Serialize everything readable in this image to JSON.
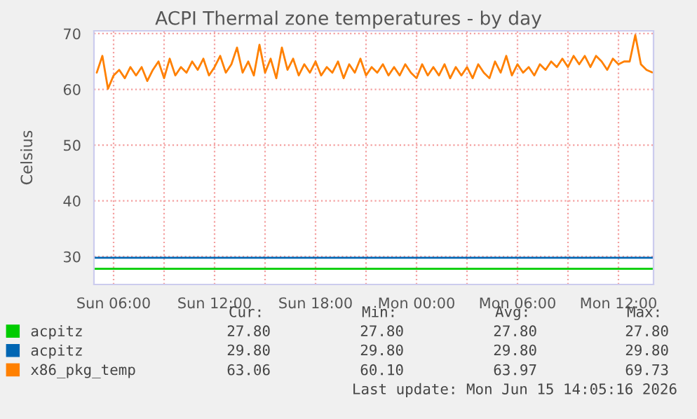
{
  "chart_data": {
    "type": "line",
    "title": "ACPI Thermal zone temperatures - by day",
    "ylabel": "Celsius",
    "xlim": [
      "2026-06-14T04:50",
      "2026-06-15T14:05"
    ],
    "xticks": [
      {
        "value": "2026-06-14T06:00",
        "label": "Sun 06:00"
      },
      {
        "value": "2026-06-14T09:00",
        "label": null
      },
      {
        "value": "2026-06-14T12:00",
        "label": "Sun 12:00"
      },
      {
        "value": "2026-06-14T15:00",
        "label": null
      },
      {
        "value": "2026-06-14T18:00",
        "label": "Sun 18:00"
      },
      {
        "value": "2026-06-14T21:00",
        "label": null
      },
      {
        "value": "2026-06-15T00:00",
        "label": "Mon 00:00"
      },
      {
        "value": "2026-06-15T03:00",
        "label": null
      },
      {
        "value": "2026-06-15T06:00",
        "label": "Mon 06:00"
      },
      {
        "value": "2026-06-15T09:00",
        "label": null
      },
      {
        "value": "2026-06-15T12:00",
        "label": "Mon 12:00"
      }
    ],
    "ylim": [
      25,
      70.5
    ],
    "yticks": [
      30,
      40,
      50,
      60,
      70
    ],
    "grid": true,
    "legend": "bottom",
    "marker": "none",
    "line_style": "solid",
    "x": [
      "2026-06-14T05:00",
      "2026-06-14T05:20",
      "2026-06-14T05:40",
      "2026-06-14T06:00",
      "2026-06-14T06:20",
      "2026-06-14T06:40",
      "2026-06-14T07:00",
      "2026-06-14T07:20",
      "2026-06-14T07:40",
      "2026-06-14T08:00",
      "2026-06-14T08:20",
      "2026-06-14T08:40",
      "2026-06-14T09:00",
      "2026-06-14T09:20",
      "2026-06-14T09:40",
      "2026-06-14T10:00",
      "2026-06-14T10:20",
      "2026-06-14T10:40",
      "2026-06-14T11:00",
      "2026-06-14T11:20",
      "2026-06-14T11:40",
      "2026-06-14T12:00",
      "2026-06-14T12:20",
      "2026-06-14T12:40",
      "2026-06-14T13:00",
      "2026-06-14T13:20",
      "2026-06-14T13:40",
      "2026-06-14T14:00",
      "2026-06-14T14:20",
      "2026-06-14T14:40",
      "2026-06-14T15:00",
      "2026-06-14T15:20",
      "2026-06-14T15:40",
      "2026-06-14T16:00",
      "2026-06-14T16:20",
      "2026-06-14T16:40",
      "2026-06-14T17:00",
      "2026-06-14T17:20",
      "2026-06-14T17:40",
      "2026-06-14T18:00",
      "2026-06-14T18:20",
      "2026-06-14T18:40",
      "2026-06-14T19:00",
      "2026-06-14T19:20",
      "2026-06-14T19:40",
      "2026-06-14T20:00",
      "2026-06-14T20:20",
      "2026-06-14T20:40",
      "2026-06-14T21:00",
      "2026-06-14T21:20",
      "2026-06-14T21:40",
      "2026-06-14T22:00",
      "2026-06-14T22:20",
      "2026-06-14T22:40",
      "2026-06-14T23:00",
      "2026-06-14T23:20",
      "2026-06-14T23:40",
      "2026-06-15T00:00",
      "2026-06-15T00:20",
      "2026-06-15T00:40",
      "2026-06-15T01:00",
      "2026-06-15T01:20",
      "2026-06-15T01:40",
      "2026-06-15T02:00",
      "2026-06-15T02:20",
      "2026-06-15T02:40",
      "2026-06-15T03:00",
      "2026-06-15T03:20",
      "2026-06-15T03:40",
      "2026-06-15T04:00",
      "2026-06-15T04:20",
      "2026-06-15T04:40",
      "2026-06-15T05:00",
      "2026-06-15T05:20",
      "2026-06-15T05:40",
      "2026-06-15T06:00",
      "2026-06-15T06:20",
      "2026-06-15T06:40",
      "2026-06-15T07:00",
      "2026-06-15T07:20",
      "2026-06-15T07:40",
      "2026-06-15T08:00",
      "2026-06-15T08:20",
      "2026-06-15T08:40",
      "2026-06-15T09:00",
      "2026-06-15T09:20",
      "2026-06-15T09:40",
      "2026-06-15T10:00",
      "2026-06-15T10:20",
      "2026-06-15T10:40",
      "2026-06-15T11:00",
      "2026-06-15T11:20",
      "2026-06-15T11:40",
      "2026-06-15T12:00",
      "2026-06-15T12:20",
      "2026-06-15T12:40",
      "2026-06-15T13:00",
      "2026-06-15T13:20",
      "2026-06-15T13:40",
      "2026-06-15T14:00"
    ],
    "series": [
      {
        "name": "acpitz",
        "color": "#00cc00",
        "x": [
          "2026-06-14T04:50",
          "2026-06-15T14:05"
        ],
        "values": [
          27.8,
          27.8
        ]
      },
      {
        "name": "acpitz",
        "color": "#0066b3",
        "x": [
          "2026-06-14T04:50",
          "2026-06-15T14:05"
        ],
        "values": [
          29.8,
          29.8
        ]
      },
      {
        "name": "x86_pkg_temp",
        "color": "#ff8000",
        "values": [
          63.0,
          66.0,
          60.1,
          62.5,
          63.5,
          62.0,
          64.0,
          62.5,
          64.0,
          61.5,
          63.5,
          65.0,
          62.0,
          65.5,
          62.5,
          64.0,
          63.0,
          65.0,
          63.5,
          65.5,
          62.5,
          64.0,
          66.0,
          63.0,
          64.5,
          67.5,
          63.0,
          65.0,
          62.5,
          68.0,
          63.0,
          65.5,
          62.0,
          67.5,
          63.5,
          65.5,
          62.5,
          64.5,
          63.0,
          65.0,
          62.5,
          64.0,
          63.0,
          65.0,
          62.0,
          64.5,
          63.0,
          65.5,
          62.5,
          64.0,
          63.0,
          64.5,
          62.5,
          64.0,
          62.5,
          64.5,
          63.0,
          62.0,
          64.5,
          62.5,
          64.0,
          62.5,
          64.5,
          62.0,
          64.0,
          62.5,
          64.0,
          62.0,
          64.5,
          63.0,
          62.0,
          65.0,
          63.0,
          66.0,
          62.5,
          64.5,
          63.0,
          64.0,
          62.5,
          64.5,
          63.5,
          65.0,
          64.0,
          65.5,
          64.0,
          66.0,
          64.5,
          66.0,
          64.0,
          66.0,
          65.0,
          63.5,
          65.5,
          64.5,
          65.0,
          65.0,
          69.73,
          64.5,
          63.5,
          63.06
        ]
      }
    ],
    "annotations": [
      "Cur:",
      "Min:",
      "Avg:",
      "Max:",
      "27.80",
      "27.80",
      "27.80",
      "27.80",
      "29.80",
      "29.80",
      "29.80",
      "29.80",
      "63.06",
      "60.10",
      "63.97",
      "69.73",
      "Last update: Mon Jun 15 14:05:16 2026"
    ]
  }
}
